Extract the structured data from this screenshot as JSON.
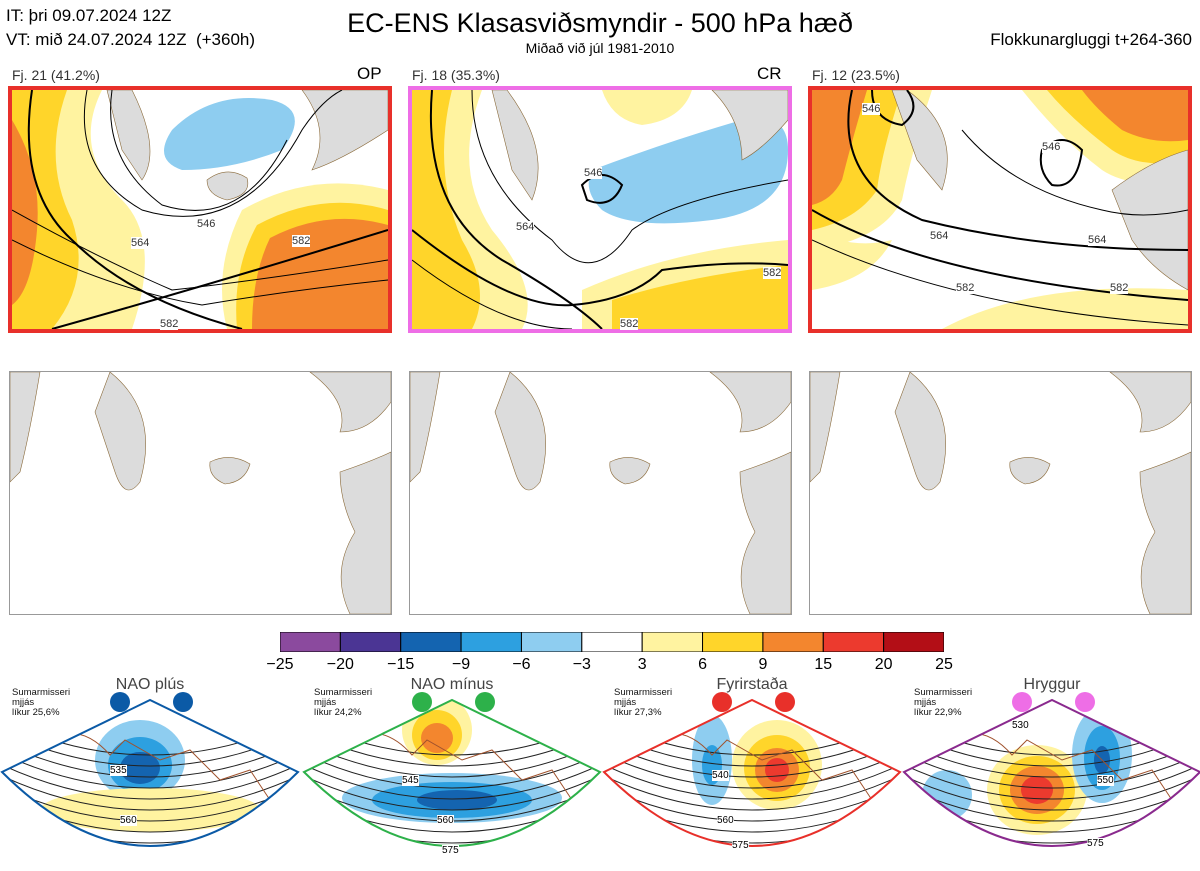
{
  "header": {
    "it_line": "IT: þri 09.07.2024 12Z",
    "vt_line": "VT: mið 24.07.2024 12Z  (+360h)",
    "title": "EC-ENS Klasasviðsmyndir - 500 hPa hæð",
    "subtitle": "Miðað við júl 1981-2010",
    "window": "Flokkunargluggi t+264-360"
  },
  "panels": [
    {
      "label": "Fj. 21 (41.2%)",
      "code": "OP",
      "border": "#e8302a",
      "contours": [
        "546",
        "564",
        "582",
        "582"
      ]
    },
    {
      "label": "Fj. 18 (35.3%)",
      "code": "CR",
      "border": "#ee6ee6",
      "contours": [
        "546",
        "564",
        "582",
        "582"
      ]
    },
    {
      "label": "Fj. 12 (23.5%)",
      "code": "",
      "border": "#e8302a",
      "contours": [
        "546",
        "546",
        "564",
        "564",
        "582",
        "582"
      ]
    }
  ],
  "colors": {
    "land": "#dcdcdc",
    "coast": "#8a6a3a",
    "pos1": "#fff3a0",
    "pos2": "#ffd52a",
    "pos3": "#f3862e",
    "neg1": "#8ecdf0",
    "neg2": "#2da0e0",
    "neg3": "#1464b0"
  },
  "chart_data": {
    "type": "heatmap",
    "colorbar": {
      "ticks": [
        "−25",
        "−20",
        "−15",
        "−9",
        "−6",
        "−3",
        "3",
        "6",
        "9",
        "15",
        "20",
        "25"
      ],
      "colors": [
        "#8b4a9e",
        "#4b3594",
        "#1464b0",
        "#2da0e0",
        "#8ecdf0",
        "#ffffff",
        "#fff3a0",
        "#ffd52a",
        "#f3862e",
        "#ec3a2e",
        "#b30e16"
      ]
    }
  },
  "clusters": [
    {
      "name": "NAO plús",
      "info": "Sumarmisseri\nmjjás\nlíkur 25,6%",
      "color": "#0b5aa6",
      "border": "#0b5aa6",
      "contours": [
        "535",
        "560"
      ]
    },
    {
      "name": "NAO mínus",
      "info": "Sumarmisseri\nmjjás\nlíkur 24,2%",
      "color": "#2db14a",
      "border": "#2db14a",
      "contours": [
        "545",
        "560",
        "575"
      ]
    },
    {
      "name": "Fyrirstaða",
      "info": "Sumarmisseri\nmjjás\nlíkur 27,3%",
      "color": "#e8302a",
      "border": "#e8302a",
      "contours": [
        "540",
        "560",
        "575"
      ]
    },
    {
      "name": "Hryggur",
      "info": "Sumarmisseri\nmjjás\nlíkur 22,9%",
      "color": "#ee6ee6",
      "border": "#8a2a8e",
      "contours": [
        "530",
        "550",
        "575"
      ]
    }
  ]
}
